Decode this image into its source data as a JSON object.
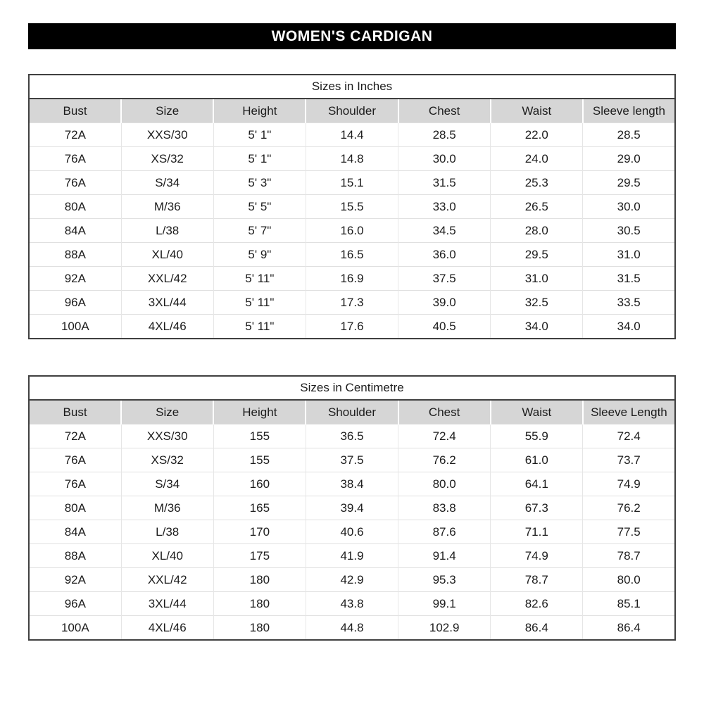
{
  "page": {
    "title": "WOMEN'S CARDIGAN"
  },
  "colors": {
    "title_bg": "#000000",
    "title_text": "#ffffff",
    "header_row_bg": "#d6d6d6",
    "table_border": "#404040",
    "grid_line": "#e0e0e0",
    "text": "#1c1c1c"
  },
  "tables": [
    {
      "caption": "Sizes in Inches",
      "headers": [
        "Bust",
        "Size",
        "Height",
        "Shoulder",
        "Chest",
        "Waist",
        "Sleeve length"
      ],
      "rows": [
        [
          "72A",
          "XXS/30",
          "5' 1\"",
          "14.4",
          "28.5",
          "22.0",
          "28.5"
        ],
        [
          "76A",
          "XS/32",
          "5' 1\"",
          "14.8",
          "30.0",
          "24.0",
          "29.0"
        ],
        [
          "76A",
          "S/34",
          "5' 3\"",
          "15.1",
          "31.5",
          "25.3",
          "29.5"
        ],
        [
          "80A",
          "M/36",
          "5' 5\"",
          "15.5",
          "33.0",
          "26.5",
          "30.0"
        ],
        [
          "84A",
          "L/38",
          "5' 7\"",
          "16.0",
          "34.5",
          "28.0",
          "30.5"
        ],
        [
          "88A",
          "XL/40",
          "5' 9\"",
          "16.5",
          "36.0",
          "29.5",
          "31.0"
        ],
        [
          "92A",
          "XXL/42",
          "5' 11\"",
          "16.9",
          "37.5",
          "31.0",
          "31.5"
        ],
        [
          "96A",
          "3XL/44",
          "5' 11\"",
          "17.3",
          "39.0",
          "32.5",
          "33.5"
        ],
        [
          "100A",
          "4XL/46",
          "5' 11\"",
          "17.6",
          "40.5",
          "34.0",
          "34.0"
        ]
      ]
    },
    {
      "caption": "Sizes in Centimetre",
      "headers": [
        "Bust",
        "Size",
        "Height",
        "Shoulder",
        "Chest",
        "Waist",
        "Sleeve Length"
      ],
      "rows": [
        [
          "72A",
          "XXS/30",
          "155",
          "36.5",
          "72.4",
          "55.9",
          "72.4"
        ],
        [
          "76A",
          "XS/32",
          "155",
          "37.5",
          "76.2",
          "61.0",
          "73.7"
        ],
        [
          "76A",
          "S/34",
          "160",
          "38.4",
          "80.0",
          "64.1",
          "74.9"
        ],
        [
          "80A",
          "M/36",
          "165",
          "39.4",
          "83.8",
          "67.3",
          "76.2"
        ],
        [
          "84A",
          "L/38",
          "170",
          "40.6",
          "87.6",
          "71.1",
          "77.5"
        ],
        [
          "88A",
          "XL/40",
          "175",
          "41.9",
          "91.4",
          "74.9",
          "78.7"
        ],
        [
          "92A",
          "XXL/42",
          "180",
          "42.9",
          "95.3",
          "78.7",
          "80.0"
        ],
        [
          "96A",
          "3XL/44",
          "180",
          "43.8",
          "99.1",
          "82.6",
          "85.1"
        ],
        [
          "100A",
          "4XL/46",
          "180",
          "44.8",
          "102.9",
          "86.4",
          "86.4"
        ]
      ]
    }
  ]
}
